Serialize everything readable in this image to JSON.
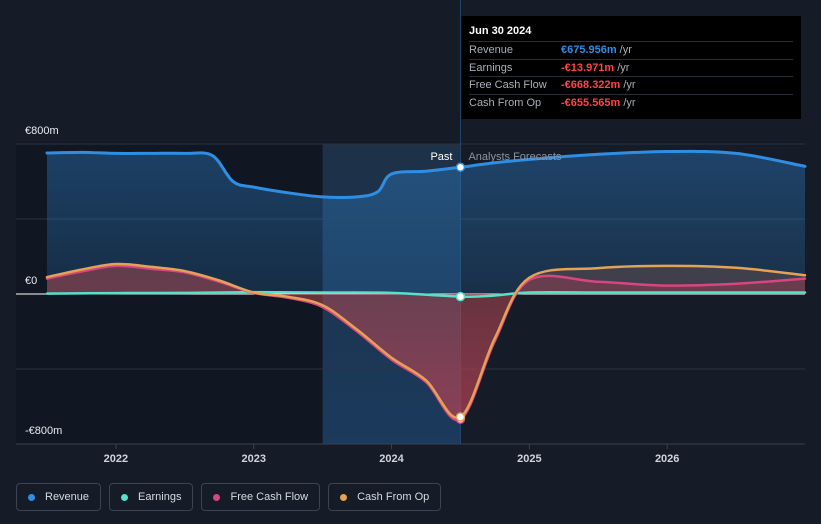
{
  "chart_data": {
    "type": "line",
    "x_ticks": [
      "2022",
      "2023",
      "2024",
      "2025",
      "2026"
    ],
    "y_ticks": [
      "€800m",
      "€0",
      "-€800m"
    ],
    "ylim": [
      -800,
      800
    ],
    "xlim": [
      2021.5,
      2027.0
    ],
    "divider_x": 2024.5,
    "highlight_start": 2023.5,
    "past_label": "Past",
    "forecast_label": "Analysts Forecasts",
    "series": [
      {
        "name": "Revenue",
        "color": "#2f8ee3",
        "points": [
          [
            2021.5,
            752
          ],
          [
            2021.75,
            755
          ],
          [
            2022.0,
            750
          ],
          [
            2022.25,
            750
          ],
          [
            2022.5,
            750
          ],
          [
            2022.7,
            738
          ],
          [
            2022.85,
            600
          ],
          [
            2023.0,
            570
          ],
          [
            2023.25,
            540
          ],
          [
            2023.5,
            518
          ],
          [
            2023.75,
            518
          ],
          [
            2023.9,
            545
          ],
          [
            2024.0,
            640
          ],
          [
            2024.25,
            655
          ],
          [
            2024.5,
            676
          ],
          [
            2024.75,
            700
          ],
          [
            2025.0,
            718
          ],
          [
            2025.5,
            745
          ],
          [
            2026.0,
            760
          ],
          [
            2026.5,
            750
          ],
          [
            2027.0,
            681
          ]
        ]
      },
      {
        "name": "Earnings",
        "color": "#58e0c8",
        "points": [
          [
            2021.5,
            2
          ],
          [
            2022.0,
            5
          ],
          [
            2022.5,
            6
          ],
          [
            2023.0,
            10
          ],
          [
            2023.5,
            8
          ],
          [
            2024.0,
            6
          ],
          [
            2024.5,
            -14
          ],
          [
            2024.75,
            -8
          ],
          [
            2025.0,
            8
          ],
          [
            2025.5,
            8
          ],
          [
            2026.0,
            8
          ],
          [
            2026.5,
            8
          ],
          [
            2027.0,
            8
          ]
        ]
      },
      {
        "name": "Free Cash Flow",
        "color": "#d7467f",
        "points": [
          [
            2021.5,
            82
          ],
          [
            2021.75,
            120
          ],
          [
            2022.0,
            150
          ],
          [
            2022.25,
            135
          ],
          [
            2022.5,
            115
          ],
          [
            2022.75,
            65
          ],
          [
            2023.0,
            6
          ],
          [
            2023.25,
            -20
          ],
          [
            2023.5,
            -70
          ],
          [
            2023.75,
            -200
          ],
          [
            2024.0,
            -350
          ],
          [
            2024.25,
            -470
          ],
          [
            2024.5,
            -668
          ],
          [
            2024.75,
            -250
          ],
          [
            2025.0,
            75
          ],
          [
            2025.5,
            65
          ],
          [
            2026.0,
            45
          ],
          [
            2026.5,
            55
          ],
          [
            2027.0,
            82
          ]
        ]
      },
      {
        "name": "Cash From Op",
        "color": "#e3a256",
        "points": [
          [
            2021.5,
            90
          ],
          [
            2021.75,
            130
          ],
          [
            2022.0,
            160
          ],
          [
            2022.25,
            145
          ],
          [
            2022.5,
            122
          ],
          [
            2022.75,
            72
          ],
          [
            2023.0,
            8
          ],
          [
            2023.25,
            -15
          ],
          [
            2023.5,
            -60
          ],
          [
            2023.75,
            -190
          ],
          [
            2024.0,
            -340
          ],
          [
            2024.25,
            -460
          ],
          [
            2024.5,
            -656
          ],
          [
            2024.75,
            -235
          ],
          [
            2025.0,
            87
          ],
          [
            2025.5,
            138
          ],
          [
            2026.0,
            150
          ],
          [
            2026.5,
            140
          ],
          [
            2027.0,
            100
          ]
        ]
      }
    ]
  },
  "tooltip": {
    "date": "Jun 30 2024",
    "rows": [
      {
        "name": "Revenue",
        "value": "€675.956m",
        "unit": "/yr",
        "color": "#2f8ee3"
      },
      {
        "name": "Earnings",
        "value": "-€13.971m",
        "unit": "/yr",
        "color": "#ff4545"
      },
      {
        "name": "Free Cash Flow",
        "value": "-€668.322m",
        "unit": "/yr",
        "color": "#ff4545"
      },
      {
        "name": "Cash From Op",
        "value": "-€655.565m",
        "unit": "/yr",
        "color": "#ff4545"
      }
    ]
  },
  "legend": [
    {
      "label": "Revenue",
      "color": "#2f8ee3"
    },
    {
      "label": "Earnings",
      "color": "#58e0c8"
    },
    {
      "label": "Free Cash Flow",
      "color": "#d7467f"
    },
    {
      "label": "Cash From Op",
      "color": "#e3a256"
    }
  ]
}
